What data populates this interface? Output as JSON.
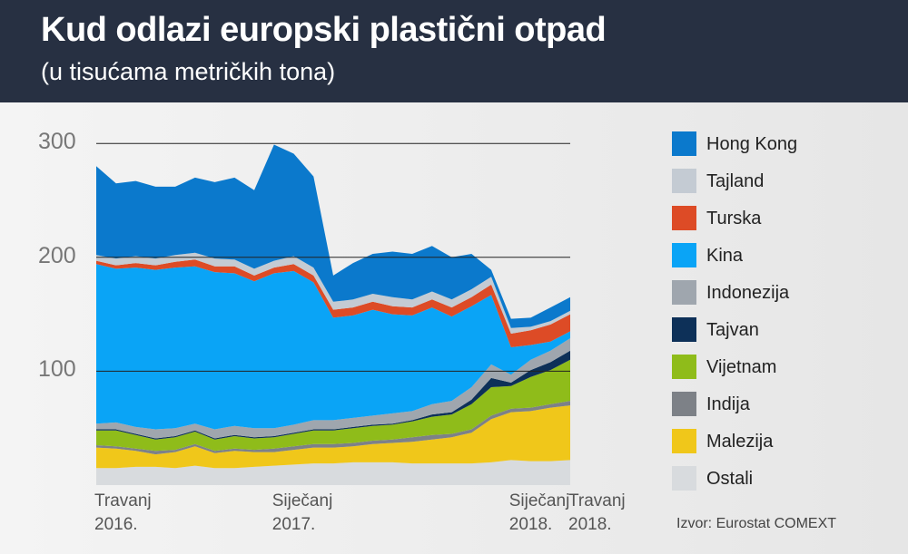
{
  "title": "Kud odlazi europski plastični otpad",
  "subtitle": "(u tisućama metričkih tona)",
  "source": "Izvor: Eurostat COMEXT",
  "chart_data": {
    "type": "area",
    "stacked": true,
    "ylim": [
      0,
      300
    ],
    "yticks": [
      100,
      200,
      300
    ],
    "grid": true,
    "legend_placement": "right",
    "x_tick_labels": [
      {
        "line1": "Travanj",
        "line2": "2016."
      },
      {
        "line1": "Siječanj",
        "line2": "2017."
      },
      {
        "line1": "Siječanj",
        "line2": "2018."
      },
      {
        "line1": "Travanj",
        "line2": "2018."
      }
    ],
    "x_tick_index": [
      0,
      9,
      21,
      24
    ],
    "categories": [
      "2016-04",
      "2016-05",
      "2016-06",
      "2016-07",
      "2016-08",
      "2016-09",
      "2016-10",
      "2016-11",
      "2016-12",
      "2017-01",
      "2017-02",
      "2017-03",
      "2017-04",
      "2017-05",
      "2017-06",
      "2017-07",
      "2017-08",
      "2017-09",
      "2017-10",
      "2017-11",
      "2017-12",
      "2018-01",
      "2018-02",
      "2018-03",
      "2018-04"
    ],
    "series": [
      {
        "name": "Ostali",
        "color": "#d8dbde",
        "values": [
          15,
          15,
          16,
          16,
          15,
          17,
          15,
          15,
          16,
          17,
          18,
          19,
          19,
          20,
          20,
          20,
          19,
          19,
          19,
          19,
          20,
          22,
          21,
          21,
          22
        ]
      },
      {
        "name": "Malezija",
        "color": "#f0c71a",
        "values": [
          18,
          17,
          14,
          11,
          14,
          17,
          13,
          15,
          13,
          12,
          13,
          14,
          14,
          14,
          16,
          17,
          19,
          21,
          23,
          27,
          38,
          42,
          44,
          47,
          48
        ]
      },
      {
        "name": "Indija",
        "color": "#7d8187",
        "values": [
          2,
          2,
          2,
          3,
          2,
          2,
          2,
          2,
          2,
          3,
          3,
          3,
          3,
          3,
          3,
          3,
          4,
          4,
          3,
          3,
          3,
          3,
          3,
          3,
          4
        ]
      },
      {
        "name": "Vijetnam",
        "color": "#8fbc1a",
        "values": [
          13,
          14,
          12,
          10,
          11,
          11,
          10,
          11,
          10,
          10,
          11,
          12,
          12,
          13,
          13,
          13,
          14,
          16,
          17,
          22,
          25,
          20,
          27,
          30,
          36
        ]
      },
      {
        "name": "Tajvan",
        "color": "#0d3058",
        "values": [
          1,
          1,
          1,
          1,
          1,
          1,
          1,
          1,
          1,
          1,
          1,
          1,
          1,
          1,
          1,
          1,
          1,
          2,
          2,
          4,
          8,
          3,
          6,
          7,
          8
        ]
      },
      {
        "name": "Indonezija",
        "color": "#9fa6ae",
        "values": [
          5,
          6,
          6,
          8,
          7,
          6,
          8,
          8,
          8,
          7,
          7,
          8,
          8,
          8,
          8,
          9,
          8,
          9,
          10,
          11,
          12,
          7,
          9,
          10,
          11
        ]
      },
      {
        "name": "Kina",
        "color": "#0aa4f6",
        "values": [
          140,
          135,
          140,
          140,
          141,
          138,
          138,
          134,
          129,
          136,
          135,
          121,
          90,
          90,
          93,
          87,
          84,
          85,
          74,
          71,
          61,
          24,
          13,
          8,
          6
        ]
      },
      {
        "name": "Turska",
        "color": "#dd4b26",
        "values": [
          3,
          3,
          4,
          4,
          5,
          6,
          5,
          6,
          5,
          5,
          6,
          6,
          7,
          7,
          7,
          7,
          7,
          7,
          8,
          8,
          9,
          12,
          13,
          15,
          15
        ]
      },
      {
        "name": "Tajland",
        "color": "#c4cbd3",
        "values": [
          5,
          6,
          6,
          6,
          6,
          6,
          7,
          6,
          6,
          6,
          7,
          7,
          7,
          7,
          7,
          8,
          7,
          7,
          7,
          7,
          7,
          5,
          3,
          3,
          3
        ]
      },
      {
        "name": "Hong Kong",
        "color": "#0b79cc",
        "values": [
          78,
          66,
          66,
          63,
          60,
          66,
          67,
          72,
          69,
          102,
          90,
          80,
          23,
          32,
          35,
          40,
          40,
          40,
          37,
          31,
          6,
          8,
          8,
          12,
          12
        ]
      }
    ]
  }
}
